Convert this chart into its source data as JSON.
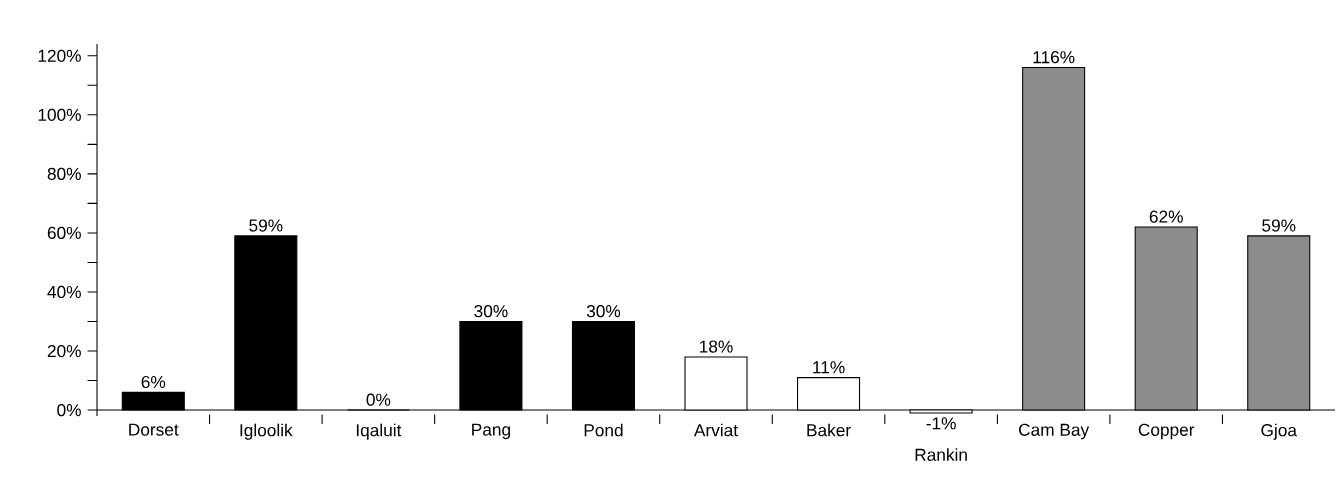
{
  "chart_data": {
    "type": "bar",
    "categories": [
      "Dorset",
      "Igloolik",
      "Iqaluit",
      "Pang",
      "Pond",
      "Arviat",
      "Baker",
      "Rankin",
      "Cam Bay",
      "Copper",
      "Gjoa"
    ],
    "values": [
      6,
      59,
      0,
      30,
      30,
      18,
      11,
      -1,
      116,
      62,
      59
    ],
    "value_labels": [
      "6%",
      "59%",
      "0%",
      "30%",
      "30%",
      "18%",
      "11%",
      "-1%",
      "116%",
      "62%",
      "59%"
    ],
    "colors": [
      "#000000",
      "#000000",
      "#000000",
      "#000000",
      "#000000",
      "#ffffff",
      "#ffffff",
      "#ffffff",
      "#8c8c8c",
      "#8c8c8c",
      "#8c8c8c"
    ],
    "ylim": [
      -2,
      124
    ],
    "yticks": [
      {
        "value": 0,
        "label": "0%"
      },
      {
        "value": 10,
        "label": null
      },
      {
        "value": 20,
        "label": "20%"
      },
      {
        "value": 30,
        "label": null
      },
      {
        "value": 40,
        "label": "40%"
      },
      {
        "value": 50,
        "label": null
      },
      {
        "value": 60,
        "label": "60%"
      },
      {
        "value": 70,
        "label": null
      },
      {
        "value": 80,
        "label": "80%"
      },
      {
        "value": 90,
        "label": null
      },
      {
        "value": 100,
        "label": "100%"
      },
      {
        "value": 110,
        "label": null
      },
      {
        "value": 120,
        "label": "120%"
      }
    ],
    "grid": false
  }
}
